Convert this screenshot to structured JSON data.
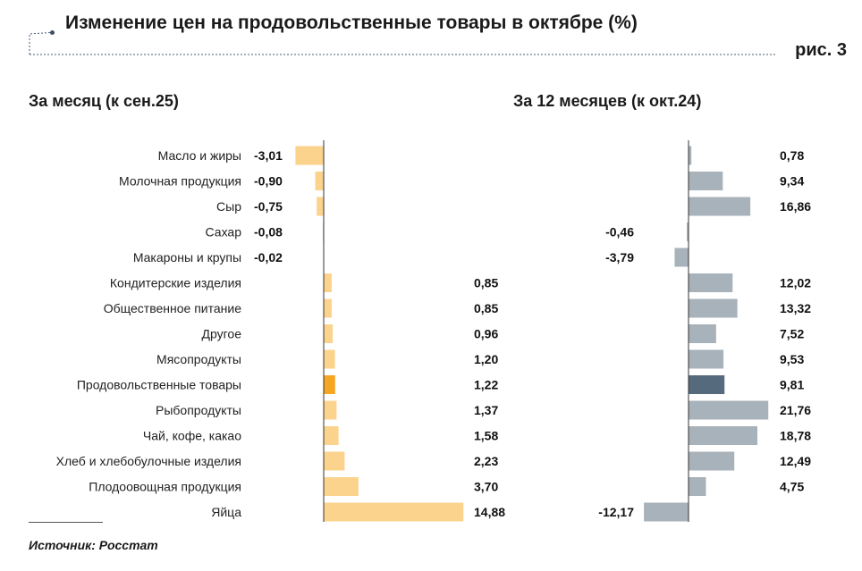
{
  "header": {
    "title": "Изменение цен на продовольственные товары в октябре (%)",
    "figure_label": "рис. 3"
  },
  "source": "Источник: Росстат",
  "colors": {
    "month_bar": "#fbd38d",
    "month_highlight": "#f5a623",
    "year_bar": "#a8b2ba",
    "year_highlight": "#566a7e",
    "axis": "#333333",
    "title_rule": "#4a5d73"
  },
  "chart_data": [
    {
      "type": "bar",
      "orientation": "horizontal",
      "title": "За месяц (к сен.25)",
      "categories": [
        "Масло и жиры",
        "Молочная продукция",
        "Сыр",
        "Сахар",
        "Макароны и крупы",
        "Кондитерские изделия",
        "Общественное питание",
        "Другое",
        "Мясопродукты",
        "Продовольственные товары",
        "Рыбопродукты",
        "Чай, кофе, какао",
        "Хлеб и хлебобулочные изделия",
        "Плодоовощная продукция",
        "Яйца"
      ],
      "values": [
        -3.01,
        -0.9,
        -0.75,
        -0.08,
        -0.02,
        0.85,
        0.85,
        0.96,
        1.2,
        1.22,
        1.37,
        1.58,
        2.23,
        3.7,
        14.88
      ],
      "labels": [
        "-3,01",
        "-0,90",
        "-0,75",
        "-0,08",
        "-0,02",
        "0,85",
        "0,85",
        "0,96",
        "1,20",
        "1,22",
        "1,37",
        "1,58",
        "2,23",
        "3,70",
        "14,88"
      ],
      "highlight": "Продовольственные товары",
      "grid": false
    },
    {
      "type": "bar",
      "orientation": "horizontal",
      "title": "За 12 месяцев (к окт.24)",
      "categories": [
        "Масло и жиры",
        "Молочная продукция",
        "Сыр",
        "Сахар",
        "Макароны и крупы",
        "Кондитерские изделия",
        "Общественное питание",
        "Другое",
        "Мясопродукты",
        "Продовольственные товары",
        "Рыбопродукты",
        "Чай, кофе, какао",
        "Хлеб и хлебобулочные изделия",
        "Плодоовощная продукция",
        "Яйца"
      ],
      "values": [
        0.78,
        9.34,
        16.86,
        -0.46,
        -3.79,
        12.02,
        13.32,
        7.52,
        9.53,
        9.81,
        21.76,
        18.78,
        12.49,
        4.75,
        -12.17
      ],
      "labels": [
        "0,78",
        "9,34",
        "16,86",
        "-0,46",
        "-3,79",
        "12,02",
        "13,32",
        "7,52",
        "9,53",
        "9,81",
        "21,76",
        "18,78",
        "12,49",
        "4,75",
        "-12,17"
      ],
      "highlight": "Продовольственные товары",
      "grid": false
    }
  ]
}
